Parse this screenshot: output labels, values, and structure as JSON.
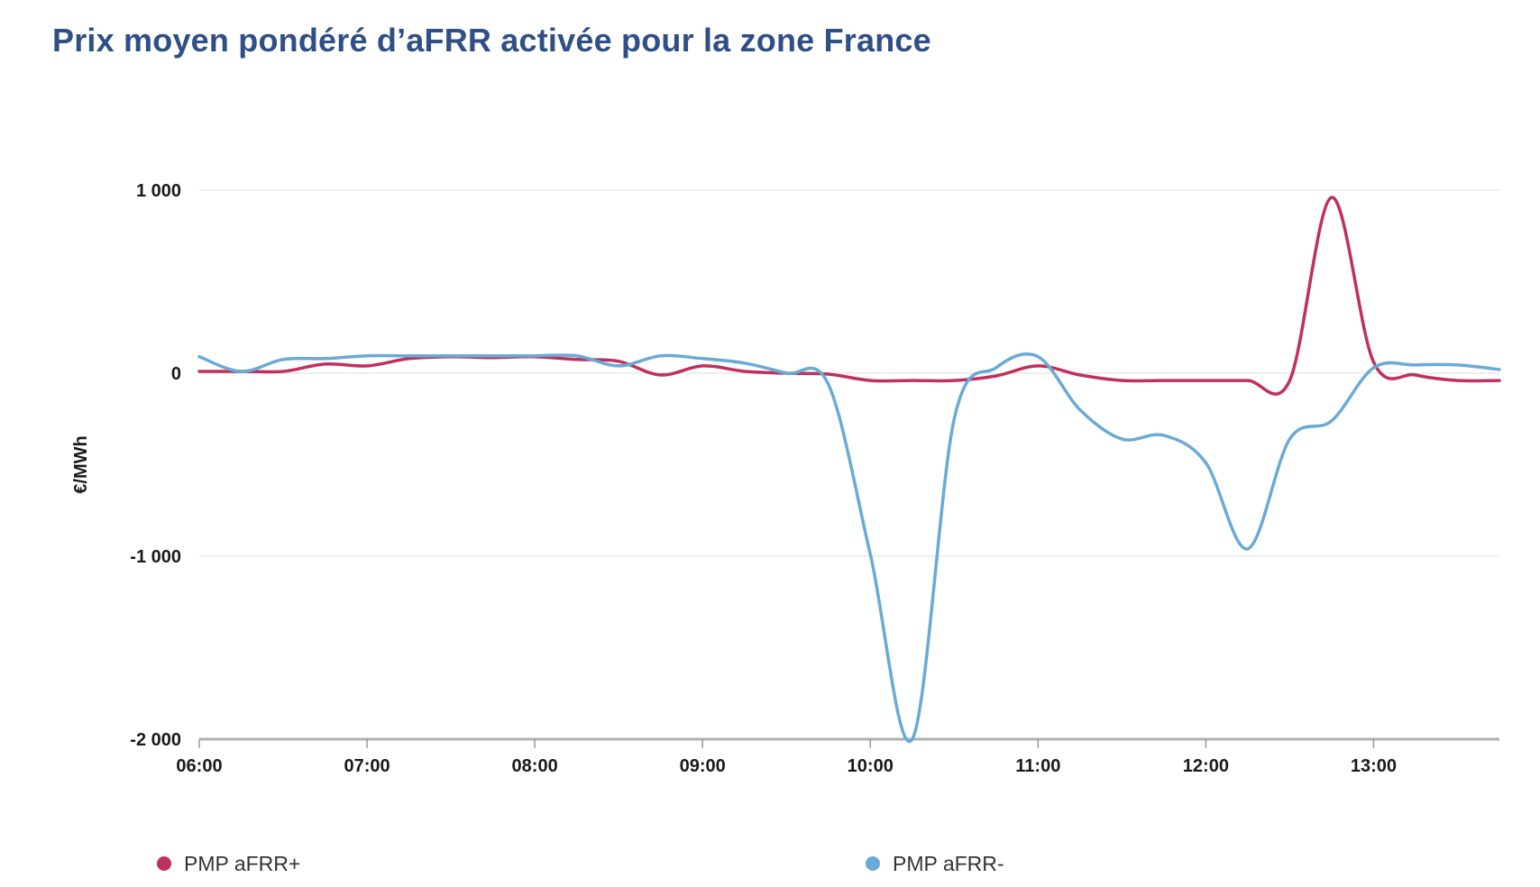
{
  "chart_data": {
    "type": "line",
    "title": "Prix moyen pondéré d’aFRR activée pour la zone France",
    "xlabel": "",
    "ylabel": "€/MWh",
    "x_tick_labels": [
      "06:00",
      "07:00",
      "08:00",
      "09:00",
      "10:00",
      "11:00",
      "12:00",
      "13:00"
    ],
    "y_tick_labels": [
      "1 000",
      "0",
      "-1 000",
      "-2 000"
    ],
    "y_ticks": [
      1000,
      0,
      -1000,
      -2000
    ],
    "ylim": [
      -2000,
      1000
    ],
    "x_unit": "hours",
    "xlim": [
      6.0,
      13.75
    ],
    "grid": true,
    "legend_position": "bottom",
    "series": [
      {
        "name": "PMP aFRR+",
        "color": "#c0305c",
        "points": [
          [
            6.0,
            10
          ],
          [
            6.25,
            10
          ],
          [
            6.5,
            10
          ],
          [
            6.75,
            50
          ],
          [
            7.0,
            40
          ],
          [
            7.25,
            80
          ],
          [
            7.5,
            90
          ],
          [
            7.75,
            85
          ],
          [
            8.0,
            90
          ],
          [
            8.25,
            75
          ],
          [
            8.5,
            65
          ],
          [
            8.75,
            -10
          ],
          [
            9.0,
            40
          ],
          [
            9.25,
            10
          ],
          [
            9.5,
            0
          ],
          [
            9.75,
            -5
          ],
          [
            10.0,
            -40
          ],
          [
            10.25,
            -40
          ],
          [
            10.5,
            -40
          ],
          [
            10.75,
            -15
          ],
          [
            11.0,
            40
          ],
          [
            11.25,
            -10
          ],
          [
            11.5,
            -40
          ],
          [
            11.75,
            -40
          ],
          [
            12.0,
            -40
          ],
          [
            12.25,
            -40
          ],
          [
            12.5,
            -40
          ],
          [
            12.75,
            960
          ],
          [
            13.0,
            60
          ],
          [
            13.25,
            -10
          ],
          [
            13.5,
            -40
          ],
          [
            13.75,
            -40
          ]
        ]
      },
      {
        "name": "PMP aFRR-",
        "color": "#6aaad6",
        "points": [
          [
            6.0,
            90
          ],
          [
            6.25,
            10
          ],
          [
            6.5,
            75
          ],
          [
            6.75,
            80
          ],
          [
            7.0,
            95
          ],
          [
            7.25,
            95
          ],
          [
            7.5,
            95
          ],
          [
            7.75,
            95
          ],
          [
            8.0,
            95
          ],
          [
            8.25,
            95
          ],
          [
            8.5,
            40
          ],
          [
            8.75,
            95
          ],
          [
            9.0,
            80
          ],
          [
            9.25,
            55
          ],
          [
            9.5,
            0
          ],
          [
            9.75,
            -60
          ],
          [
            10.0,
            -990
          ],
          [
            10.25,
            -2000
          ],
          [
            10.5,
            -250
          ],
          [
            10.75,
            30
          ],
          [
            11.0,
            90
          ],
          [
            11.25,
            -200
          ],
          [
            11.5,
            -360
          ],
          [
            11.75,
            -340
          ],
          [
            12.0,
            -490
          ],
          [
            12.25,
            -960
          ],
          [
            12.5,
            -360
          ],
          [
            12.75,
            -260
          ],
          [
            13.0,
            30
          ],
          [
            13.25,
            45
          ],
          [
            13.5,
            45
          ],
          [
            13.75,
            20
          ]
        ]
      }
    ]
  }
}
